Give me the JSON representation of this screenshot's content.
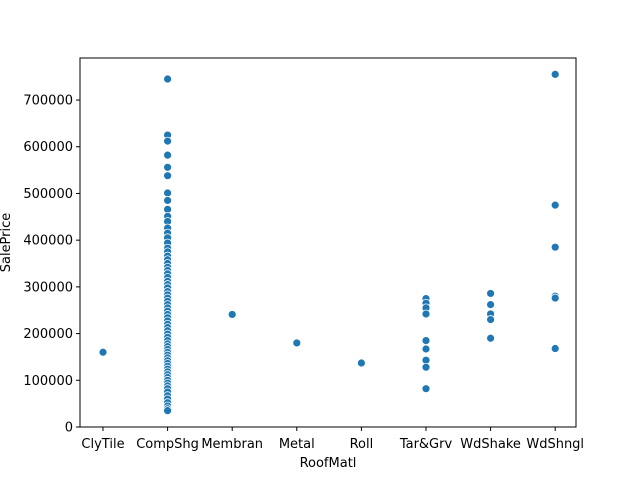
{
  "chart_data": {
    "type": "scatter",
    "xlabel": "RoofMatl",
    "ylabel": "SalePrice",
    "categories": [
      "ClyTile",
      "CompShg",
      "Membran",
      "Metal",
      "Roll",
      "Tar&Grv",
      "WdShake",
      "WdShngl"
    ],
    "ylim": [
      0,
      790000
    ],
    "yticks": [
      0,
      100000,
      200000,
      300000,
      400000,
      500000,
      600000,
      700000
    ],
    "grid": false,
    "point_color": "#1f77b4",
    "points": [
      {
        "x": "ClyTile",
        "y": 160000
      },
      {
        "x": "CompShg",
        "y": 745000
      },
      {
        "x": "CompShg",
        "y": 625000
      },
      {
        "x": "CompShg",
        "y": 612000
      },
      {
        "x": "CompShg",
        "y": 582000
      },
      {
        "x": "CompShg",
        "y": 556000
      },
      {
        "x": "CompShg",
        "y": 538000
      },
      {
        "x": "CompShg",
        "y": 501000
      },
      {
        "x": "CompShg",
        "y": 485000
      },
      {
        "x": "CompShg",
        "y": 466000
      },
      {
        "x": "CompShg",
        "y": 451000
      },
      {
        "x": "CompShg",
        "y": 440000
      },
      {
        "x": "CompShg",
        "y": 426000
      },
      {
        "x": "CompShg",
        "y": 415000
      },
      {
        "x": "CompShg",
        "y": 405000
      },
      {
        "x": "CompShg",
        "y": 394000
      },
      {
        "x": "CompShg",
        "y": 383000
      },
      {
        "x": "CompShg",
        "y": 375000
      },
      {
        "x": "CompShg",
        "y": 366000
      },
      {
        "x": "CompShg",
        "y": 358000
      },
      {
        "x": "CompShg",
        "y": 350000
      },
      {
        "x": "CompShg",
        "y": 342000
      },
      {
        "x": "CompShg",
        "y": 335000
      },
      {
        "x": "CompShg",
        "y": 328000
      },
      {
        "x": "CompShg",
        "y": 320000
      },
      {
        "x": "CompShg",
        "y": 312000
      },
      {
        "x": "CompShg",
        "y": 305000
      },
      {
        "x": "CompShg",
        "y": 298000
      },
      {
        "x": "CompShg",
        "y": 290000
      },
      {
        "x": "CompShg",
        "y": 283000
      },
      {
        "x": "CompShg",
        "y": 276000
      },
      {
        "x": "CompShg",
        "y": 269000
      },
      {
        "x": "CompShg",
        "y": 262000
      },
      {
        "x": "CompShg",
        "y": 255000
      },
      {
        "x": "CompShg",
        "y": 248000
      },
      {
        "x": "CompShg",
        "y": 241000
      },
      {
        "x": "CompShg",
        "y": 234000
      },
      {
        "x": "CompShg",
        "y": 227000
      },
      {
        "x": "CompShg",
        "y": 220000
      },
      {
        "x": "CompShg",
        "y": 213000
      },
      {
        "x": "CompShg",
        "y": 206000
      },
      {
        "x": "CompShg",
        "y": 199000
      },
      {
        "x": "CompShg",
        "y": 192000
      },
      {
        "x": "CompShg",
        "y": 185000
      },
      {
        "x": "CompShg",
        "y": 178000
      },
      {
        "x": "CompShg",
        "y": 172000
      },
      {
        "x": "CompShg",
        "y": 166000
      },
      {
        "x": "CompShg",
        "y": 160000
      },
      {
        "x": "CompShg",
        "y": 154000
      },
      {
        "x": "CompShg",
        "y": 148000
      },
      {
        "x": "CompShg",
        "y": 142000
      },
      {
        "x": "CompShg",
        "y": 136000
      },
      {
        "x": "CompShg",
        "y": 130000
      },
      {
        "x": "CompShg",
        "y": 124000
      },
      {
        "x": "CompShg",
        "y": 118000
      },
      {
        "x": "CompShg",
        "y": 112000
      },
      {
        "x": "CompShg",
        "y": 106000
      },
      {
        "x": "CompShg",
        "y": 100000
      },
      {
        "x": "CompShg",
        "y": 94000
      },
      {
        "x": "CompShg",
        "y": 88000
      },
      {
        "x": "CompShg",
        "y": 82000
      },
      {
        "x": "CompShg",
        "y": 75000
      },
      {
        "x": "CompShg",
        "y": 67000
      },
      {
        "x": "CompShg",
        "y": 60000
      },
      {
        "x": "CompShg",
        "y": 52000
      },
      {
        "x": "CompShg",
        "y": 45000
      },
      {
        "x": "CompShg",
        "y": 39000
      },
      {
        "x": "CompShg",
        "y": 35000
      },
      {
        "x": "Membran",
        "y": 241000
      },
      {
        "x": "Metal",
        "y": 180000
      },
      {
        "x": "Roll",
        "y": 137000
      },
      {
        "x": "Tar&Grv",
        "y": 275000
      },
      {
        "x": "Tar&Grv",
        "y": 265000
      },
      {
        "x": "Tar&Grv",
        "y": 255000
      },
      {
        "x": "Tar&Grv",
        "y": 242000
      },
      {
        "x": "Tar&Grv",
        "y": 185000
      },
      {
        "x": "Tar&Grv",
        "y": 167000
      },
      {
        "x": "Tar&Grv",
        "y": 143000
      },
      {
        "x": "Tar&Grv",
        "y": 128000
      },
      {
        "x": "Tar&Grv",
        "y": 82000
      },
      {
        "x": "WdShake",
        "y": 286000
      },
      {
        "x": "WdShake",
        "y": 262000
      },
      {
        "x": "WdShake",
        "y": 242000
      },
      {
        "x": "WdShake",
        "y": 230000
      },
      {
        "x": "WdShake",
        "y": 190000
      },
      {
        "x": "WdShngl",
        "y": 755000
      },
      {
        "x": "WdShngl",
        "y": 475000
      },
      {
        "x": "WdShngl",
        "y": 385000
      },
      {
        "x": "WdShngl",
        "y": 280000
      },
      {
        "x": "WdShngl",
        "y": 276000
      },
      {
        "x": "WdShngl",
        "y": 168000
      }
    ]
  }
}
